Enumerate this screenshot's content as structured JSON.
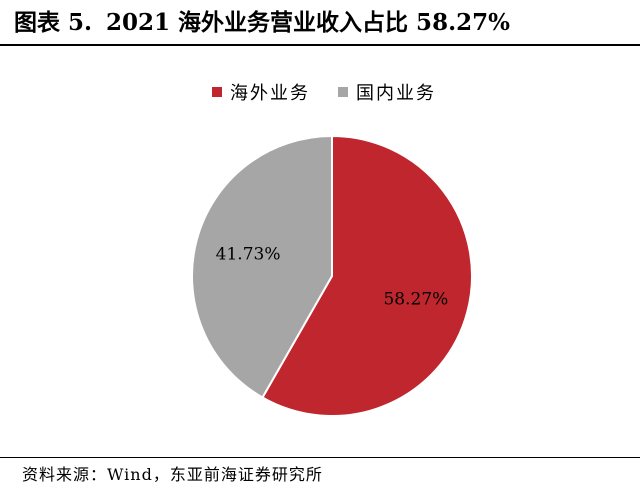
{
  "title": {
    "figure_label": "图表 5.",
    "text": "2021 海外业务营业收入占比 58.27%"
  },
  "chart_data": {
    "type": "pie",
    "title": "",
    "slices": [
      {
        "name": "海外业务",
        "value": 58.27,
        "label": "58.27%",
        "color": "#c0262d"
      },
      {
        "name": "国内业务",
        "value": 41.73,
        "label": "41.73%",
        "color": "#a6a6a6"
      }
    ],
    "start": "12 o'clock",
    "direction": "clockwise",
    "legend_position": "top-center"
  },
  "source": "资料来源：Wind，东亚前海证券研究所"
}
